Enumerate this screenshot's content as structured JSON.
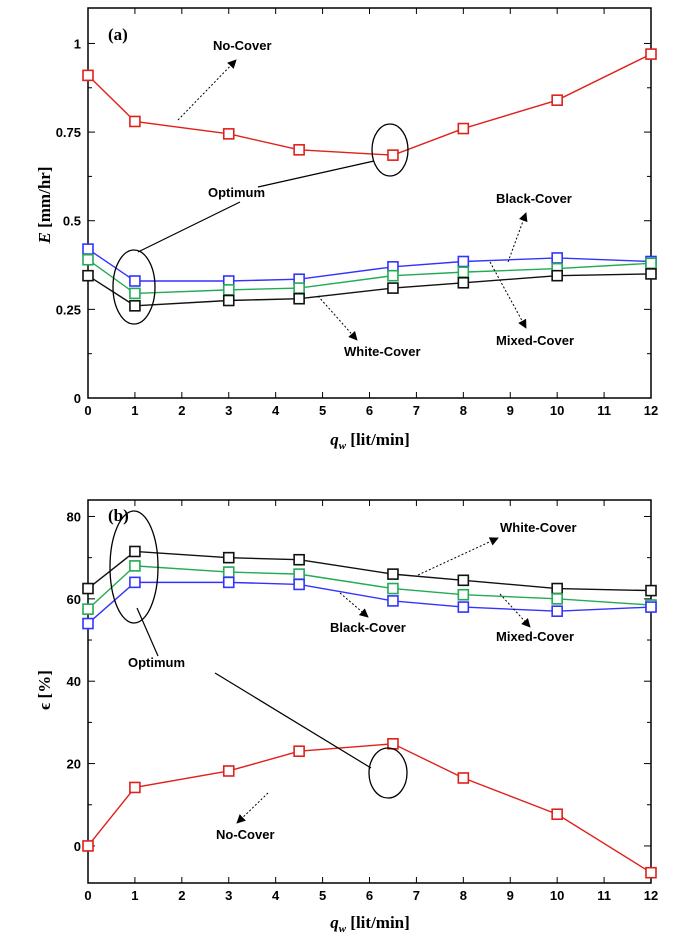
{
  "chart_data": [
    {
      "type": "line",
      "panel_label": "(a)",
      "xlabel_main": "q",
      "xlabel_sub": "w",
      "xlabel_unit": " [lit/min]",
      "ylabel_main": "E",
      "ylabel_unit": " [mm/hr]",
      "xlim": [
        0,
        12
      ],
      "ylim": [
        0,
        1.1
      ],
      "xticks": [
        0,
        1,
        2,
        3,
        4,
        5,
        6,
        7,
        8,
        9,
        10,
        11,
        12
      ],
      "yticks": [
        0,
        0.25,
        0.5,
        0.75,
        1
      ],
      "ytick_labels": [
        "0",
        "0.25",
        "0.5",
        "0.75",
        "1"
      ],
      "x": [
        0,
        1,
        3,
        4.5,
        6.5,
        8,
        10,
        12
      ],
      "series": [
        {
          "name": "No-Cover",
          "color": "#e0201a",
          "values": [
            0.91,
            0.78,
            0.745,
            0.7,
            0.685,
            0.76,
            0.84,
            0.97
          ]
        },
        {
          "name": "Black-Cover",
          "color": "#3333ff",
          "values": [
            0.42,
            0.33,
            0.33,
            0.335,
            0.37,
            0.385,
            0.395,
            0.385
          ]
        },
        {
          "name": "Mixed-Cover",
          "color": "#22aa55",
          "values": [
            0.39,
            0.295,
            0.305,
            0.31,
            0.345,
            0.355,
            0.365,
            0.38
          ]
        },
        {
          "name": "White-Cover",
          "color": "#111111",
          "values": [
            0.345,
            0.26,
            0.275,
            0.28,
            0.31,
            0.325,
            0.345,
            0.35
          ]
        }
      ],
      "annotations": {
        "no_cover": "No-Cover",
        "optimum": "Optimum",
        "black_cover": "Black-Cover",
        "mixed_cover": "Mixed-Cover",
        "white_cover": "White-Cover"
      }
    },
    {
      "type": "line",
      "panel_label": "(b)",
      "xlabel_main": "q",
      "xlabel_sub": "w",
      "xlabel_unit": " [lit/min]",
      "ylabel": "ϵ [%]",
      "xlim": [
        0,
        12
      ],
      "ylim": [
        -9,
        84
      ],
      "xticks": [
        0,
        1,
        2,
        3,
        4,
        5,
        6,
        7,
        8,
        9,
        10,
        11,
        12
      ],
      "yticks": [
        0,
        20,
        40,
        60,
        80
      ],
      "ytick_labels": [
        "0",
        "20",
        "40",
        "60",
        "80"
      ],
      "x": [
        0,
        1,
        3,
        4.5,
        6.5,
        8,
        10,
        12
      ],
      "series": [
        {
          "name": "White-Cover",
          "color": "#111111",
          "values": [
            62.5,
            71.5,
            70,
            69.5,
            66,
            64.5,
            62.5,
            62
          ]
        },
        {
          "name": "Mixed-Cover",
          "color": "#22aa55",
          "values": [
            57.5,
            68,
            66.5,
            66,
            62.5,
            61,
            60,
            58.5
          ]
        },
        {
          "name": "Black-Cover",
          "color": "#3333ff",
          "values": [
            54,
            64,
            64,
            63.5,
            59.5,
            58,
            57,
            58
          ]
        },
        {
          "name": "No-Cover",
          "color": "#e0201a",
          "values": [
            0,
            14.2,
            18.2,
            23,
            24.8,
            16.5,
            7.7,
            -6.5
          ]
        }
      ],
      "annotations": {
        "white_cover": "White-Cover",
        "black_cover": "Black-Cover",
        "mixed_cover": "Mixed-Cover",
        "optimum": "Optimum",
        "no_cover": "No-Cover"
      }
    }
  ]
}
